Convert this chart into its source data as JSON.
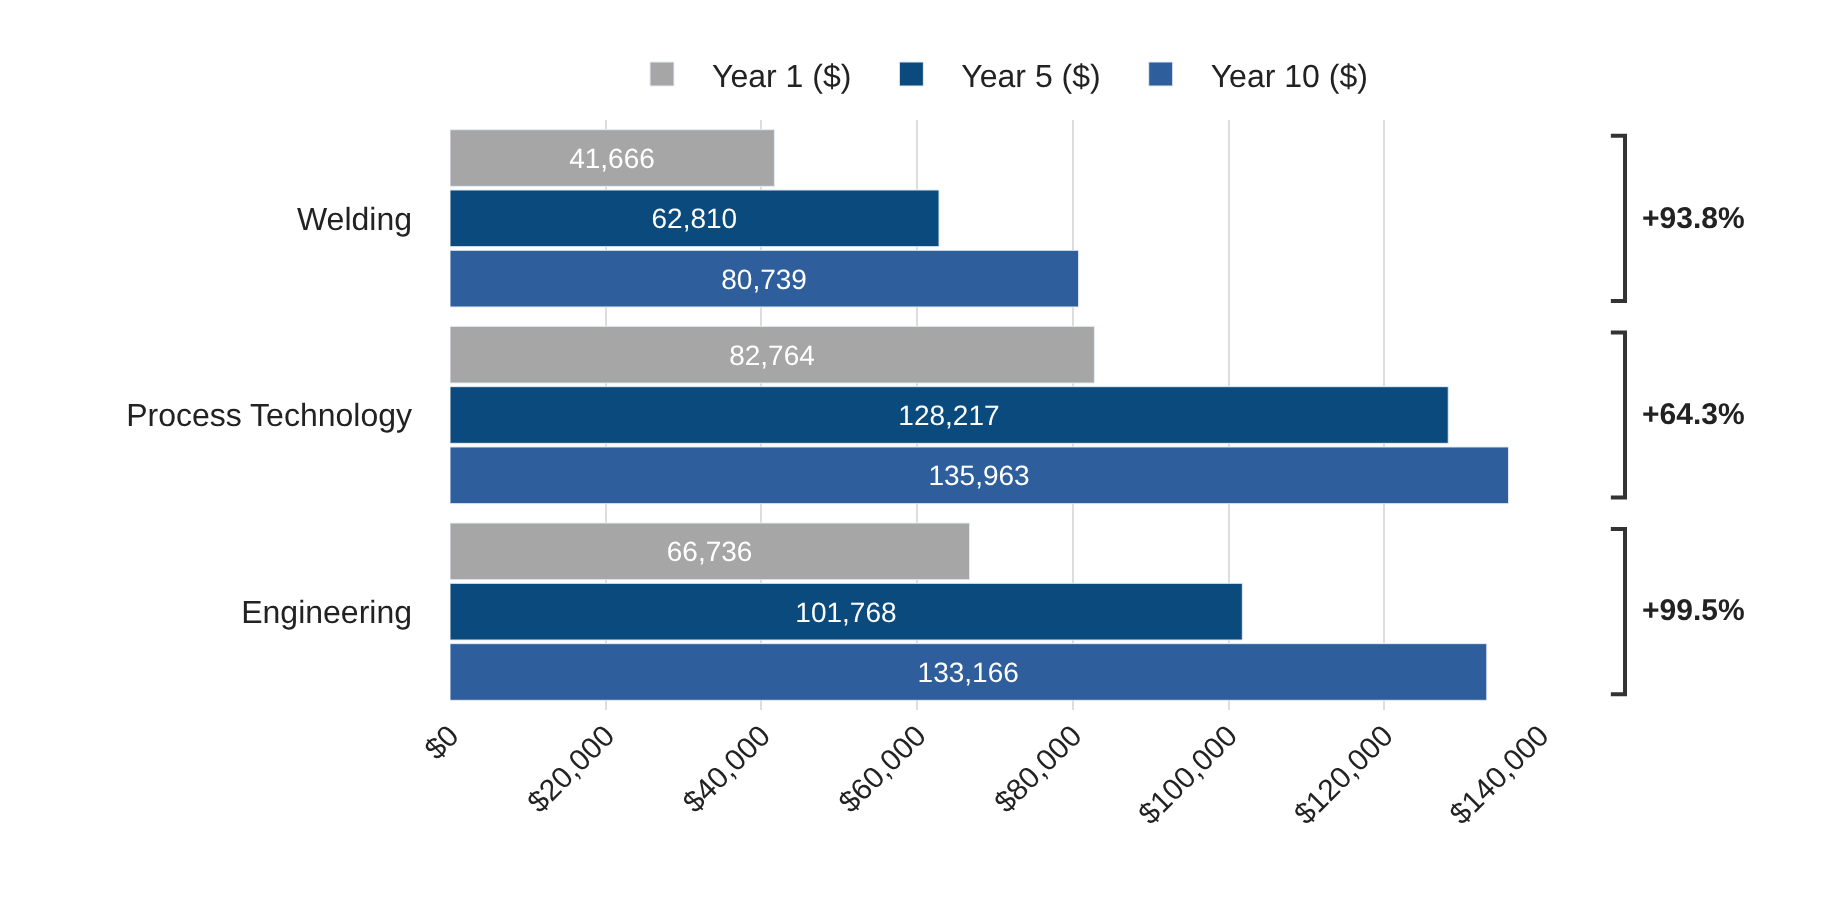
{
  "chart_data": {
    "type": "bar",
    "orientation": "horizontal",
    "categories": [
      "Welding",
      "Process Technology",
      "Engineering"
    ],
    "series": [
      {
        "name": "Year 1 ($)",
        "color": "#a6a6a6",
        "values": [
          41666,
          82764,
          66736
        ]
      },
      {
        "name": "Year 5 ($)",
        "color": "#0b4a7d",
        "values": [
          62810,
          128217,
          101768
        ]
      },
      {
        "name": "Year 10 ($)",
        "color": "#2f5e9c",
        "values": [
          80739,
          135963,
          133166
        ]
      }
    ],
    "xlim": [
      0,
      140000
    ],
    "xticks": [
      {
        "value": 0,
        "label": "$0"
      },
      {
        "value": 20000,
        "label": "$20,000"
      },
      {
        "value": 40000,
        "label": "$40,000"
      },
      {
        "value": 60000,
        "label": "$60,000"
      },
      {
        "value": 80000,
        "label": "$80,000"
      },
      {
        "value": 100000,
        "label": "$100,000"
      },
      {
        "value": 120000,
        "label": "$120,000"
      },
      {
        "value": 140000,
        "label": "$140,000"
      }
    ],
    "value_labels": [
      [
        "41,666",
        "82,764",
        "66,736"
      ],
      [
        "62,810",
        "128,217",
        "101,768"
      ],
      [
        "80,739",
        "135,963",
        "133,166"
      ]
    ],
    "annotations": [
      "+93.8%",
      "+64.3%",
      "+99.5%"
    ],
    "grid": "x",
    "legend": "top"
  }
}
